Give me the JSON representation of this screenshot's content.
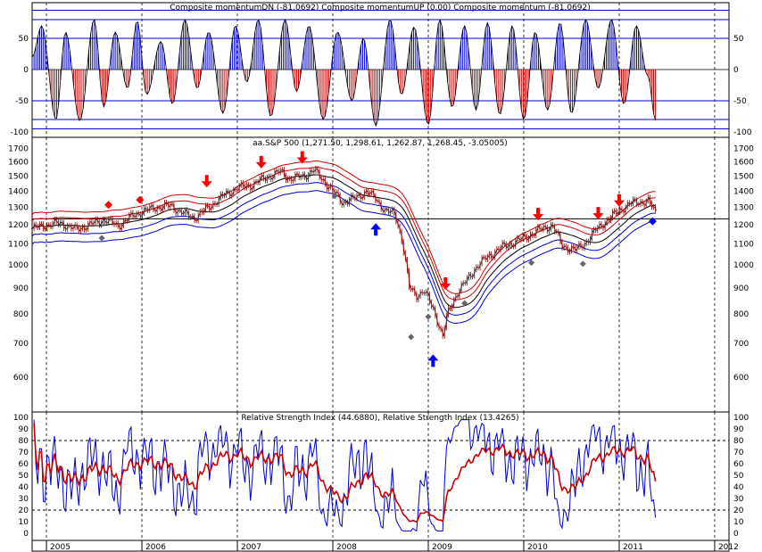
{
  "chart_data": [
    {
      "type": "bar",
      "panel": "momentum",
      "title": "Composite momentumDN (-81.0692) Composite momentumUP (0.00) Composite momentum (-81.0692)",
      "ylim": [
        -100,
        100
      ],
      "yticks": [
        "50",
        "0",
        "-50",
        "-100"
      ],
      "ytick_values": [
        50,
        0,
        -50,
        -100
      ],
      "hlines": [
        50,
        -50,
        80,
        -80,
        95,
        -95
      ],
      "x": [
        2004.85,
        2004.95,
        2005.1,
        2005.2,
        2005.35,
        2005.5,
        2005.6,
        2005.72,
        2005.85,
        2005.95,
        2006.05,
        2006.2,
        2006.32,
        2006.45,
        2006.58,
        2006.7,
        2006.85,
        2006.98,
        2007.1,
        2007.22,
        2007.35,
        2007.5,
        2007.62,
        2007.75,
        2007.9,
        2008.05,
        2008.2,
        2008.32,
        2008.45,
        2008.6,
        2008.72,
        2008.85,
        2009.0,
        2009.12,
        2009.25,
        2009.38,
        2009.5,
        2009.62,
        2009.75,
        2009.88,
        2010.0,
        2010.12,
        2010.25,
        2010.38,
        2010.5,
        2010.65,
        2010.78,
        2010.92,
        2011.05,
        2011.18,
        2011.3,
        2011.38
      ],
      "values": [
        20,
        70,
        -80,
        60,
        -82,
        80,
        -60,
        60,
        -30,
        78,
        -40,
        45,
        -55,
        80,
        -30,
        60,
        -70,
        70,
        -20,
        80,
        -75,
        80,
        -35,
        70,
        -80,
        60,
        -50,
        50,
        -90,
        80,
        -40,
        68,
        -88,
        80,
        -60,
        70,
        -65,
        75,
        -72,
        70,
        -80,
        60,
        -65,
        75,
        -70,
        80,
        -30,
        80,
        -55,
        70,
        -10,
        -81.07
      ],
      "colors": {
        "positive": "#0000cc",
        "negative": "#cc0000",
        "hline": "#0000cc"
      }
    },
    {
      "type": "candlestick",
      "panel": "price",
      "title": "aa.S&P 500 (1,271.50, 1,298.61, 1,262.87, 1,268.45, -3.05005)",
      "yscale": "log",
      "ylim": [
        520,
        1760
      ],
      "yticks": [
        "1700",
        "1600",
        "1500",
        "1400",
        "1300",
        "1200",
        "1100",
        "1000",
        "900",
        "800",
        "700",
        "600"
      ],
      "ytick_values": [
        1700,
        1600,
        1500,
        1400,
        1300,
        1200,
        1100,
        1000,
        900,
        800,
        700,
        600
      ],
      "hline": 1234,
      "close_points": [
        [
          2004.85,
          1180
        ],
        [
          2005.0,
          1200
        ],
        [
          2005.15,
          1210
        ],
        [
          2005.3,
          1175
        ],
        [
          2005.45,
          1200
        ],
        [
          2005.6,
          1230
        ],
        [
          2005.75,
          1195
        ],
        [
          2005.9,
          1250
        ],
        [
          2006.0,
          1275
        ],
        [
          2006.15,
          1300
        ],
        [
          2006.3,
          1310
        ],
        [
          2006.45,
          1260
        ],
        [
          2006.55,
          1240
        ],
        [
          2006.7,
          1300
        ],
        [
          2006.85,
          1370
        ],
        [
          2007.0,
          1420
        ],
        [
          2007.15,
          1440
        ],
        [
          2007.3,
          1490
        ],
        [
          2007.45,
          1530
        ],
        [
          2007.55,
          1480
        ],
        [
          2007.7,
          1500
        ],
        [
          2007.8,
          1540
        ],
        [
          2007.9,
          1470
        ],
        [
          2008.0,
          1400
        ],
        [
          2008.1,
          1330
        ],
        [
          2008.25,
          1360
        ],
        [
          2008.35,
          1400
        ],
        [
          2008.45,
          1350
        ],
        [
          2008.55,
          1280
        ],
        [
          2008.65,
          1260
        ],
        [
          2008.72,
          1130
        ],
        [
          2008.8,
          900
        ],
        [
          2008.88,
          870
        ],
        [
          2008.95,
          890
        ],
        [
          2009.05,
          820
        ],
        [
          2009.15,
          720
        ],
        [
          2009.2,
          800
        ],
        [
          2009.3,
          880
        ],
        [
          2009.4,
          930
        ],
        [
          2009.5,
          990
        ],
        [
          2009.6,
          1030
        ],
        [
          2009.75,
          1080
        ],
        [
          2009.9,
          1110
        ],
        [
          2010.0,
          1130
        ],
        [
          2010.15,
          1170
        ],
        [
          2010.3,
          1200
        ],
        [
          2010.4,
          1090
        ],
        [
          2010.55,
          1070
        ],
        [
          2010.65,
          1110
        ],
        [
          2010.75,
          1170
        ],
        [
          2010.9,
          1240
        ],
        [
          2011.0,
          1280
        ],
        [
          2011.1,
          1320
        ],
        [
          2011.2,
          1330
        ],
        [
          2011.3,
          1340
        ],
        [
          2011.38,
          1268
        ]
      ],
      "series": [
        {
          "name": "",
          "color": "#cc0000"
        },
        {
          "name": "",
          "color": "#cc0000"
        },
        {
          "name": "",
          "color": "#000000"
        },
        {
          "name": "",
          "color": "#0000cc"
        },
        {
          "name": "",
          "color": "#0000cc"
        }
      ],
      "markers": [
        {
          "x": 2005.65,
          "y": 1315,
          "kind": "red-diamond"
        },
        {
          "x": 2005.98,
          "y": 1345,
          "kind": "red-diamond"
        },
        {
          "x": 2006.68,
          "y": 1435,
          "kind": "red-down-arrow"
        },
        {
          "x": 2007.25,
          "y": 1565,
          "kind": "red-down-arrow"
        },
        {
          "x": 2007.68,
          "y": 1600,
          "kind": "red-down-arrow"
        },
        {
          "x": 2009.18,
          "y": 900,
          "kind": "red-down-arrow"
        },
        {
          "x": 2010.15,
          "y": 1235,
          "kind": "red-down-arrow"
        },
        {
          "x": 2010.78,
          "y": 1240,
          "kind": "red-down-arrow"
        },
        {
          "x": 2011.0,
          "y": 1315,
          "kind": "red-down-arrow"
        },
        {
          "x": 2008.45,
          "y": 1200,
          "kind": "blue-up-arrow"
        },
        {
          "x": 2009.05,
          "y": 660,
          "kind": "blue-up-arrow"
        },
        {
          "x": 2011.35,
          "y": 1220,
          "kind": "blue-diamond"
        },
        {
          "x": 2005.58,
          "y": 1130,
          "kind": "gray-diamond"
        },
        {
          "x": 2008.02,
          "y": 1370,
          "kind": "gray-diamond"
        },
        {
          "x": 2008.82,
          "y": 720,
          "kind": "gray-diamond"
        },
        {
          "x": 2009.0,
          "y": 790,
          "kind": "gray-diamond"
        },
        {
          "x": 2009.38,
          "y": 840,
          "kind": "gray-diamond"
        },
        {
          "x": 2010.08,
          "y": 1010,
          "kind": "gray-diamond"
        },
        {
          "x": 2010.62,
          "y": 1005,
          "kind": "gray-diamond"
        }
      ]
    },
    {
      "type": "line",
      "panel": "rsi",
      "title": "Relative Strength Index (44.6880), Relative Strength Index (13.4265)",
      "ylim": [
        0,
        100
      ],
      "yticks": [
        "100",
        "90",
        "80",
        "70",
        "60",
        "50",
        "40",
        "30",
        "20",
        "10",
        "0"
      ],
      "ytick_values": [
        100,
        90,
        80,
        70,
        60,
        50,
        40,
        30,
        20,
        10,
        0
      ],
      "hlines": [
        80,
        20
      ],
      "series": [
        {
          "name": "",
          "color": "#cc0000",
          "last": 44.688
        },
        {
          "name": "",
          "color": "#0000cc",
          "last": 13.4265
        }
      ]
    }
  ],
  "x_axis": {
    "range": [
      2004.85,
      2012.15
    ],
    "years": [
      "2005",
      "2006",
      "2007",
      "2008",
      "2009",
      "2010",
      "2011",
      "2012"
    ],
    "year_values": [
      2005,
      2006,
      2007,
      2008,
      2009,
      2010,
      2011,
      2012
    ]
  }
}
